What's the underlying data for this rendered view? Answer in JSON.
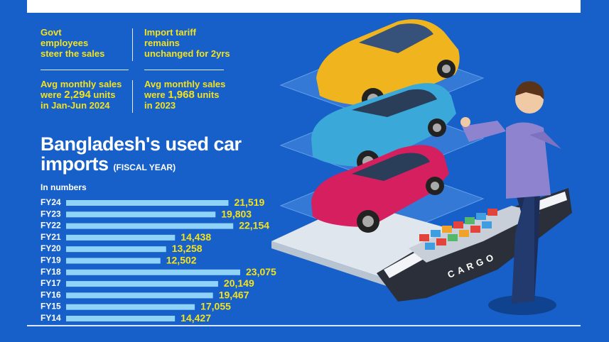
{
  "facts": {
    "f1": "Govt\nemployees\nsteer the sales",
    "f2": "Import tariff\nremains\nunchanged for 2yrs",
    "f3_pre": "Avg monthly sales",
    "f3_mid": "were ",
    "f3_num": "2,294",
    "f3_post": " units",
    "f3_end": "in Jan-Jun 2024",
    "f4_pre": "Avg monthly sales",
    "f4_mid": "were ",
    "f4_num": "1,968",
    "f4_post": " units",
    "f4_end": "in 2023"
  },
  "illustration": {
    "ship_text": "CARGO"
  },
  "chart_data": {
    "type": "bar",
    "orientation": "horizontal",
    "title_line1": "Bangladesh's used car",
    "title_line2": "imports",
    "title_suffix": "(FISCAL YEAR)",
    "unit_label": "In numbers",
    "categories": [
      "FY24",
      "FY23",
      "FY22",
      "FY21",
      "FY20",
      "FY19",
      "FY18",
      "FY17",
      "FY16",
      "FY15",
      "FY14"
    ],
    "values": [
      21519,
      19803,
      22154,
      14438,
      13258,
      12502,
      23075,
      20149,
      19467,
      17055,
      14427
    ],
    "value_labels": [
      "21,519",
      "19,803",
      "22,154",
      "14,438",
      "13,258",
      "12,502",
      "23,075",
      "20,149",
      "19,467",
      "17,055",
      "14,427"
    ],
    "bar_color": "#8fd3f7",
    "value_color": "#f4e21d",
    "grid": false,
    "legend": "none"
  }
}
